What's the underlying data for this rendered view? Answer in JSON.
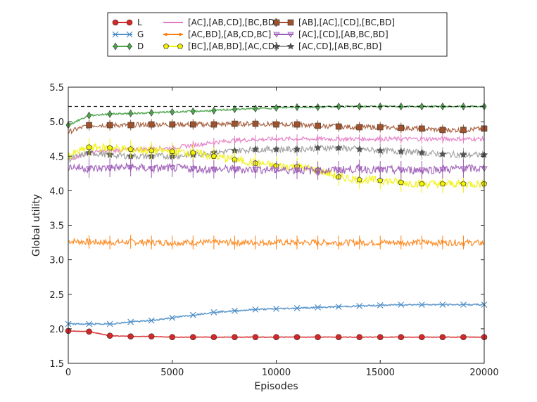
{
  "chart_data": {
    "type": "line",
    "title": "",
    "xlabel": "Episodes",
    "ylabel": "Global utility",
    "xlim": [
      0,
      20000
    ],
    "ylim": [
      1.5,
      5.5
    ],
    "xticks": [
      "0",
      "5000",
      "10000",
      "15000",
      "20000"
    ],
    "yticks": [
      "1.5",
      "2.0",
      "2.5",
      "3.0",
      "3.5",
      "4.0",
      "4.5",
      "5.0",
      "5.5"
    ],
    "grid": false,
    "legend_position": "top",
    "reference_line": 5.22,
    "x": [
      0,
      1000,
      2000,
      3000,
      4000,
      5000,
      6000,
      7000,
      8000,
      9000,
      10000,
      11000,
      12000,
      13000,
      14000,
      15000,
      16000,
      17000,
      18000,
      19000,
      20000
    ],
    "series": [
      {
        "name": "L",
        "color": "#d62728",
        "marker": "circle",
        "values": [
          1.97,
          1.96,
          1.9,
          1.89,
          1.89,
          1.88,
          1.88,
          1.88,
          1.88,
          1.88,
          1.88,
          1.88,
          1.88,
          1.88,
          1.88,
          1.88,
          1.88,
          1.88,
          1.88,
          1.88,
          1.88
        ]
      },
      {
        "name": "G",
        "color": "#4f8fc6",
        "marker": "x",
        "values": [
          2.07,
          2.07,
          2.07,
          2.1,
          2.12,
          2.16,
          2.2,
          2.24,
          2.26,
          2.28,
          2.29,
          2.3,
          2.31,
          2.32,
          2.33,
          2.34,
          2.35,
          2.35,
          2.35,
          2.35,
          2.35
        ]
      },
      {
        "name": "D",
        "color": "#4ca64c",
        "marker": "diamond",
        "values": [
          4.95,
          5.09,
          5.11,
          5.12,
          5.13,
          5.14,
          5.15,
          5.16,
          5.18,
          5.19,
          5.2,
          5.21,
          5.21,
          5.22,
          5.22,
          5.22,
          5.22,
          5.22,
          5.22,
          5.22,
          5.22
        ]
      },
      {
        "name": "[AC],[AB,CD],[BC,BD]",
        "color": "#e377c2",
        "marker": "none",
        "values": [
          4.45,
          4.55,
          4.58,
          4.6,
          4.61,
          4.62,
          4.66,
          4.7,
          4.73,
          4.74,
          4.75,
          4.75,
          4.75,
          4.75,
          4.75,
          4.75,
          4.75,
          4.75,
          4.75,
          4.75,
          4.75
        ]
      },
      {
        "name": "[AC,BD],[AB,CD,BC]",
        "color": "#ff7f0e",
        "marker": "dot",
        "values": [
          3.27,
          3.26,
          3.25,
          3.26,
          3.25,
          3.25,
          3.25,
          3.25,
          3.25,
          3.25,
          3.25,
          3.25,
          3.25,
          3.25,
          3.25,
          3.25,
          3.25,
          3.25,
          3.25,
          3.25,
          3.24
        ]
      },
      {
        "name": "[BC],[AB,BD],[AC,CD]",
        "color": "#f2f200",
        "marker": "pentagon",
        "values": [
          4.5,
          4.63,
          4.62,
          4.6,
          4.58,
          4.57,
          4.55,
          4.5,
          4.45,
          4.4,
          4.36,
          4.35,
          4.3,
          4.2,
          4.16,
          4.15,
          4.12,
          4.1,
          4.1,
          4.1,
          4.1
        ]
      },
      {
        "name": "[AB],[AC],[CD],[BC,BD]",
        "color": "#a0522d",
        "marker": "square",
        "values": [
          4.85,
          4.95,
          4.95,
          4.95,
          4.96,
          4.96,
          4.96,
          4.96,
          4.97,
          4.97,
          4.96,
          4.96,
          4.94,
          4.93,
          4.92,
          4.92,
          4.91,
          4.9,
          4.88,
          4.88,
          4.9
        ]
      },
      {
        "name": "[AC],[CD],[AB,BC,BD]",
        "color": "#9b59b6",
        "marker": "triangle-down",
        "values": [
          4.35,
          4.32,
          4.33,
          4.34,
          4.32,
          4.33,
          4.32,
          4.31,
          4.31,
          4.31,
          4.3,
          4.3,
          4.29,
          4.3,
          4.32,
          4.3,
          4.3,
          4.3,
          4.31,
          4.32,
          4.32
        ]
      },
      {
        "name": "[AC,CD],[AB,BC,BD]",
        "color": "#999999",
        "marker": "star",
        "values": [
          4.45,
          4.55,
          4.52,
          4.5,
          4.5,
          4.5,
          4.52,
          4.55,
          4.58,
          4.6,
          4.6,
          4.6,
          4.62,
          4.62,
          4.6,
          4.58,
          4.57,
          4.55,
          4.53,
          4.52,
          4.52
        ]
      }
    ]
  }
}
